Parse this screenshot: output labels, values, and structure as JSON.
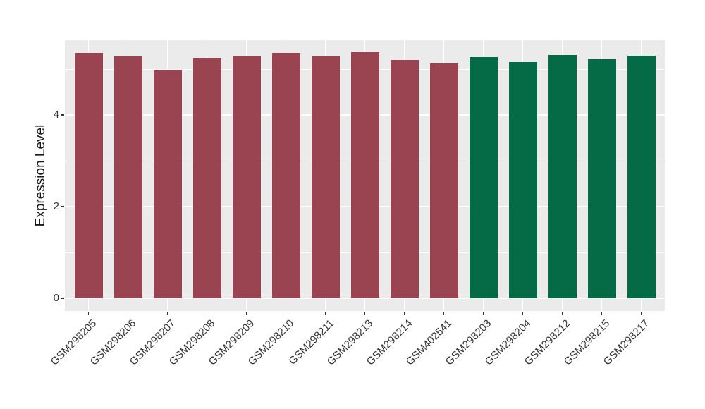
{
  "chart_data": {
    "type": "bar",
    "title": "",
    "xlabel": "",
    "ylabel": "Expression Level",
    "categories": [
      "GSM298205",
      "GSM298206",
      "GSM298207",
      "GSM298208",
      "GSM298209",
      "GSM298210",
      "GSM298211",
      "GSM298213",
      "GSM298214",
      "GSM402541",
      "GSM298203",
      "GSM298204",
      "GSM298212",
      "GSM298215",
      "GSM298217"
    ],
    "values": [
      5.36,
      5.27,
      4.98,
      5.25,
      5.28,
      5.36,
      5.27,
      5.37,
      5.2,
      5.12,
      5.26,
      5.15,
      5.31,
      5.22,
      5.3
    ],
    "bar_colors": [
      "#9A4452",
      "#9A4452",
      "#9A4452",
      "#9A4452",
      "#9A4452",
      "#9A4452",
      "#9A4452",
      "#9A4452",
      "#9A4452",
      "#9A4452",
      "#056B47",
      "#056B47",
      "#056B47",
      "#056B47",
      "#056B47"
    ],
    "color_groups": [
      {
        "color": "#9A4452",
        "members": [
          "GSM298205",
          "GSM298206",
          "GSM298207",
          "GSM298208",
          "GSM298209",
          "GSM298210",
          "GSM298211",
          "GSM298213",
          "GSM298214",
          "GSM402541"
        ]
      },
      {
        "color": "#056B47",
        "members": [
          "GSM298203",
          "GSM298204",
          "GSM298212",
          "GSM298215",
          "GSM298217"
        ]
      }
    ],
    "ylim": [
      -0.27,
      5.63
    ],
    "yticks_major": [
      0,
      2,
      4
    ],
    "yticks_minor": [
      1,
      3,
      5
    ],
    "x_tick_rotation_deg": 45,
    "grid": true,
    "legend": "none",
    "style": {
      "panel_bg": "#EBEBEB",
      "grid_color": "#FFFFFF",
      "tick_color": "#333333",
      "axis_text_color": "#333333",
      "axis_title_color": "#1A1A1A",
      "page_bg": "#FFFFFF"
    }
  }
}
